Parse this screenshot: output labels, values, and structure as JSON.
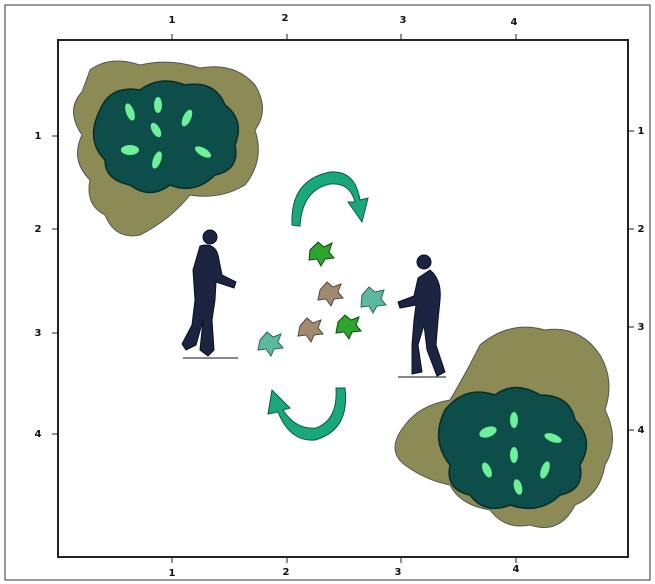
{
  "top_labels": [
    "1",
    "2",
    "3",
    "4"
  ],
  "bottom_labels": [
    "1",
    "2",
    "3",
    "4"
  ],
  "left_labels": [
    "1",
    "2",
    "3",
    "4"
  ],
  "right_labels": [
    "1",
    "2",
    "3",
    "4"
  ]
}
